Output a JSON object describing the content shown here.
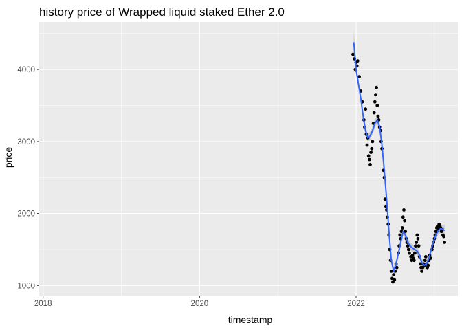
{
  "chart_data": {
    "type": "scatter",
    "title": "history price of Wrapped liquid staked Ether 2.0",
    "xlabel": "timestamp",
    "ylabel": "price",
    "x_ticks": [
      "2018",
      "2020",
      "2022"
    ],
    "y_ticks": [
      1000,
      2000,
      3000,
      4000
    ],
    "xlim": [
      2017.95,
      2023.3
    ],
    "ylim": [
      860,
      4660
    ],
    "grid": true,
    "legend": "none",
    "colors": {
      "panel": "#ebebeb",
      "grid_major": "#ffffff",
      "points": "#000000",
      "smooth": "#3366ff",
      "ribbon": "#999999"
    },
    "series": [
      {
        "kind": "points",
        "points": [
          [
            2021.96,
            4210
          ],
          [
            2021.98,
            4150
          ],
          [
            2021.99,
            4000
          ],
          [
            2022.0,
            4100
          ],
          [
            2022.01,
            4050
          ],
          [
            2022.02,
            4120
          ],
          [
            2022.04,
            3900
          ],
          [
            2022.06,
            3700
          ],
          [
            2022.08,
            3550
          ],
          [
            2022.1,
            3300
          ],
          [
            2022.11,
            3200
          ],
          [
            2022.12,
            3450
          ],
          [
            2022.13,
            3100
          ],
          [
            2022.14,
            2950
          ],
          [
            2022.15,
            3050
          ],
          [
            2022.16,
            2800
          ],
          [
            2022.17,
            2750
          ],
          [
            2022.18,
            2680
          ],
          [
            2022.19,
            2850
          ],
          [
            2022.2,
            2900
          ],
          [
            2022.21,
            3000
          ],
          [
            2022.22,
            3250
          ],
          [
            2022.23,
            3400
          ],
          [
            2022.24,
            3550
          ],
          [
            2022.25,
            3650
          ],
          [
            2022.26,
            3750
          ],
          [
            2022.27,
            3500
          ],
          [
            2022.28,
            3350
          ],
          [
            2022.29,
            3300
          ],
          [
            2022.3,
            3200
          ],
          [
            2022.31,
            3150
          ],
          [
            2022.32,
            3000
          ],
          [
            2022.33,
            2900
          ],
          [
            2022.35,
            2600
          ],
          [
            2022.36,
            2500
          ],
          [
            2022.37,
            2200
          ],
          [
            2022.38,
            2100
          ],
          [
            2022.39,
            2050
          ],
          [
            2022.4,
            1950
          ],
          [
            2022.41,
            1850
          ],
          [
            2022.42,
            1700
          ],
          [
            2022.43,
            1500
          ],
          [
            2022.44,
            1350
          ],
          [
            2022.45,
            1200
          ],
          [
            2022.46,
            1100
          ],
          [
            2022.47,
            1050
          ],
          [
            2022.48,
            1150
          ],
          [
            2022.49,
            1080
          ],
          [
            2022.5,
            1200
          ],
          [
            2022.51,
            1300
          ],
          [
            2022.52,
            1250
          ],
          [
            2022.54,
            1450
          ],
          [
            2022.55,
            1550
          ],
          [
            2022.56,
            1700
          ],
          [
            2022.57,
            1650
          ],
          [
            2022.58,
            1750
          ],
          [
            2022.59,
            1800
          ],
          [
            2022.6,
            1950
          ],
          [
            2022.61,
            2050
          ],
          [
            2022.62,
            1900
          ],
          [
            2022.63,
            1750
          ],
          [
            2022.64,
            1650
          ],
          [
            2022.65,
            1600
          ],
          [
            2022.66,
            1550
          ],
          [
            2022.67,
            1500
          ],
          [
            2022.68,
            1450
          ],
          [
            2022.7,
            1400
          ],
          [
            2022.71,
            1350
          ],
          [
            2022.72,
            1420
          ],
          [
            2022.73,
            1380
          ],
          [
            2022.74,
            1350
          ],
          [
            2022.75,
            1450
          ],
          [
            2022.76,
            1550
          ],
          [
            2022.77,
            1600
          ],
          [
            2022.78,
            1700
          ],
          [
            2022.79,
            1650
          ],
          [
            2022.8,
            1550
          ],
          [
            2022.81,
            1400
          ],
          [
            2022.82,
            1300
          ],
          [
            2022.83,
            1250
          ],
          [
            2022.84,
            1200
          ],
          [
            2022.85,
            1250
          ],
          [
            2022.86,
            1300
          ],
          [
            2022.87,
            1280
          ],
          [
            2022.88,
            1350
          ],
          [
            2022.89,
            1400
          ],
          [
            2022.9,
            1300
          ],
          [
            2022.91,
            1250
          ],
          [
            2022.92,
            1280
          ],
          [
            2022.93,
            1350
          ],
          [
            2022.94,
            1420
          ],
          [
            2022.95,
            1380
          ],
          [
            2022.97,
            1500
          ],
          [
            2022.98,
            1550
          ],
          [
            2022.99,
            1600
          ],
          [
            2023.0,
            1650
          ],
          [
            2023.01,
            1700
          ],
          [
            2023.02,
            1750
          ],
          [
            2023.03,
            1800
          ],
          [
            2023.04,
            1820
          ],
          [
            2023.05,
            1780
          ],
          [
            2023.06,
            1850
          ],
          [
            2023.07,
            1830
          ],
          [
            2023.08,
            1800
          ],
          [
            2023.09,
            1750
          ],
          [
            2023.1,
            1780
          ],
          [
            2023.11,
            1700
          ],
          [
            2023.12,
            1680
          ],
          [
            2023.13,
            1600
          ]
        ]
      },
      {
        "kind": "smooth",
        "points": [
          [
            2021.97,
            4380
          ],
          [
            2022.0,
            4000
          ],
          [
            2022.03,
            3800
          ],
          [
            2022.06,
            3600
          ],
          [
            2022.09,
            3350
          ],
          [
            2022.12,
            3150
          ],
          [
            2022.15,
            3050
          ],
          [
            2022.18,
            3080
          ],
          [
            2022.21,
            3150
          ],
          [
            2022.24,
            3250
          ],
          [
            2022.27,
            3300
          ],
          [
            2022.3,
            3200
          ],
          [
            2022.33,
            2950
          ],
          [
            2022.36,
            2600
          ],
          [
            2022.39,
            2200
          ],
          [
            2022.42,
            1750
          ],
          [
            2022.45,
            1350
          ],
          [
            2022.48,
            1200
          ],
          [
            2022.51,
            1300
          ],
          [
            2022.54,
            1450
          ],
          [
            2022.57,
            1600
          ],
          [
            2022.6,
            1750
          ],
          [
            2022.63,
            1700
          ],
          [
            2022.66,
            1600
          ],
          [
            2022.69,
            1550
          ],
          [
            2022.72,
            1520
          ],
          [
            2022.75,
            1500
          ],
          [
            2022.78,
            1480
          ],
          [
            2022.81,
            1420
          ],
          [
            2022.84,
            1320
          ],
          [
            2022.87,
            1280
          ],
          [
            2022.9,
            1300
          ],
          [
            2022.93,
            1380
          ],
          [
            2022.96,
            1500
          ],
          [
            2022.99,
            1620
          ],
          [
            2023.02,
            1700
          ],
          [
            2023.05,
            1760
          ],
          [
            2023.08,
            1790
          ],
          [
            2023.11,
            1780
          ],
          [
            2023.13,
            1760
          ]
        ]
      }
    ]
  }
}
